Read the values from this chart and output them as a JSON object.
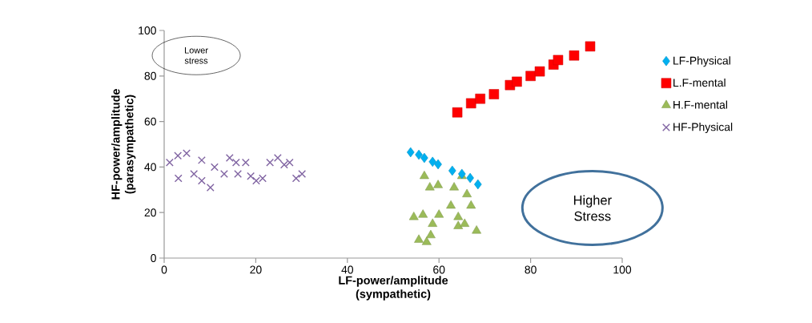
{
  "chart_data": {
    "type": "scatter",
    "xlabel": "LF-power/amplitude (sympathetic)",
    "ylabel": "HF-power/amplitude (parasympathetic)",
    "xlim": [
      0,
      100
    ],
    "ylim": [
      0,
      100
    ],
    "xticks": [
      0,
      20,
      40,
      60,
      80,
      100
    ],
    "yticks": [
      0,
      20,
      40,
      60,
      80,
      100
    ],
    "grid": false,
    "legend": "right",
    "annotations": [
      "Lower stress",
      "Higher Stress"
    ],
    "series": [
      {
        "name": "LF-Physical",
        "color": "#00b0f0",
        "marker": "diamond",
        "x": [
          53.8,
          55.6,
          56.8,
          58.6,
          59.8,
          62.9,
          65.0,
          66.8,
          68.5
        ],
        "values": [
          46.5,
          45.4,
          44.0,
          42.3,
          41.2,
          38.4,
          37.0,
          35.2,
          32.4
        ]
      },
      {
        "name": "L.F-mental",
        "color": "#ff0000",
        "marker": "square",
        "x": [
          64,
          67,
          69,
          72,
          75.5,
          77,
          80,
          82,
          85,
          86,
          89.5,
          93
        ],
        "values": [
          64,
          68,
          70,
          72,
          76,
          77.5,
          80,
          82,
          85,
          87,
          89,
          93
        ]
      },
      {
        "name": "H.F-mental",
        "color": "#9bbb59",
        "marker": "triangle",
        "x": [
          56.8,
          54.5,
          56.5,
          58.0,
          59.8,
          60.0,
          58.6,
          58.2,
          55.6,
          57.3,
          63.3,
          65.0,
          62.6,
          64.2,
          66.1,
          67.0,
          64.2,
          65.6,
          68.2
        ],
        "values": [
          36,
          18,
          19,
          31,
          32,
          19,
          15,
          10,
          8,
          7,
          31,
          36,
          23,
          18,
          28,
          23,
          14,
          15,
          12
        ]
      },
      {
        "name": "HF-Physical",
        "color": "#8064a2",
        "marker": "cross",
        "x": [
          1.2,
          3.0,
          4.9,
          3.1,
          8.2,
          6.5,
          8.2,
          10.1,
          11.0,
          13.1,
          14.3,
          15.7,
          16.1,
          17.8,
          18.9,
          20.1,
          21.5,
          23.1,
          24.8,
          26.2,
          27.4,
          28.8,
          30.1
        ],
        "values": [
          42,
          45,
          46,
          35,
          43,
          37,
          34,
          31,
          40,
          37,
          44,
          42,
          37,
          42,
          36,
          34,
          35,
          42,
          44,
          41,
          42,
          35,
          37
        ]
      }
    ]
  }
}
